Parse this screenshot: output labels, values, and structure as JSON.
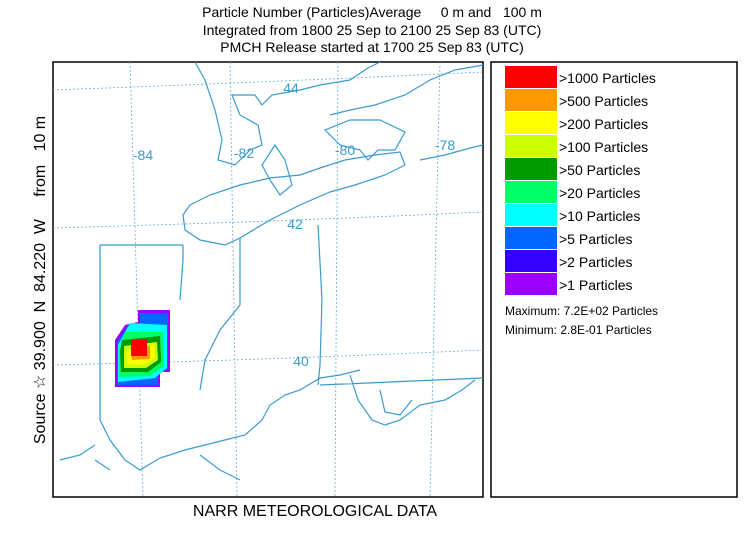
{
  "title_lines": [
    "Particle Number (Particles)Average     0 m and   100 m",
    "Integrated from 1800 25 Sep to 2100 25 Sep 83 (UTC)",
    "PMCH Release started at 1700 25 Sep 83 (UTC)"
  ],
  "side_label": "Source ☆ 39.900  N  84.220  W     from   10 m",
  "footer": "NARR METEOROLOGICAL DATA",
  "map": {
    "longitude_labels": [
      "-84",
      "-82",
      "-80",
      "-78"
    ],
    "latitude_labels": [
      "44",
      "42",
      "40"
    ]
  },
  "legend": {
    "entries": [
      {
        "label": ">1000 Particles",
        "color": "#ff0000"
      },
      {
        "label": ">500 Particles",
        "color": "#ff9900"
      },
      {
        "label": ">200 Particles",
        "color": "#ffff00"
      },
      {
        "label": ">100 Particles",
        "color": "#ccff00"
      },
      {
        "label": ">50 Particles",
        "color": "#009900"
      },
      {
        "label": ">20 Particles",
        "color": "#00ff66"
      },
      {
        "label": ">10 Particles",
        "color": "#00ffff"
      },
      {
        "label": ">5 Particles",
        "color": "#0066ff"
      },
      {
        "label": ">2 Particles",
        "color": "#3300ff"
      },
      {
        "label": ">1 Particles",
        "color": "#9900ff"
      }
    ],
    "maximum": "Maximum: 7.2E+02 Particles",
    "minimum": "Minimum: 2.8E-01 Particles"
  }
}
